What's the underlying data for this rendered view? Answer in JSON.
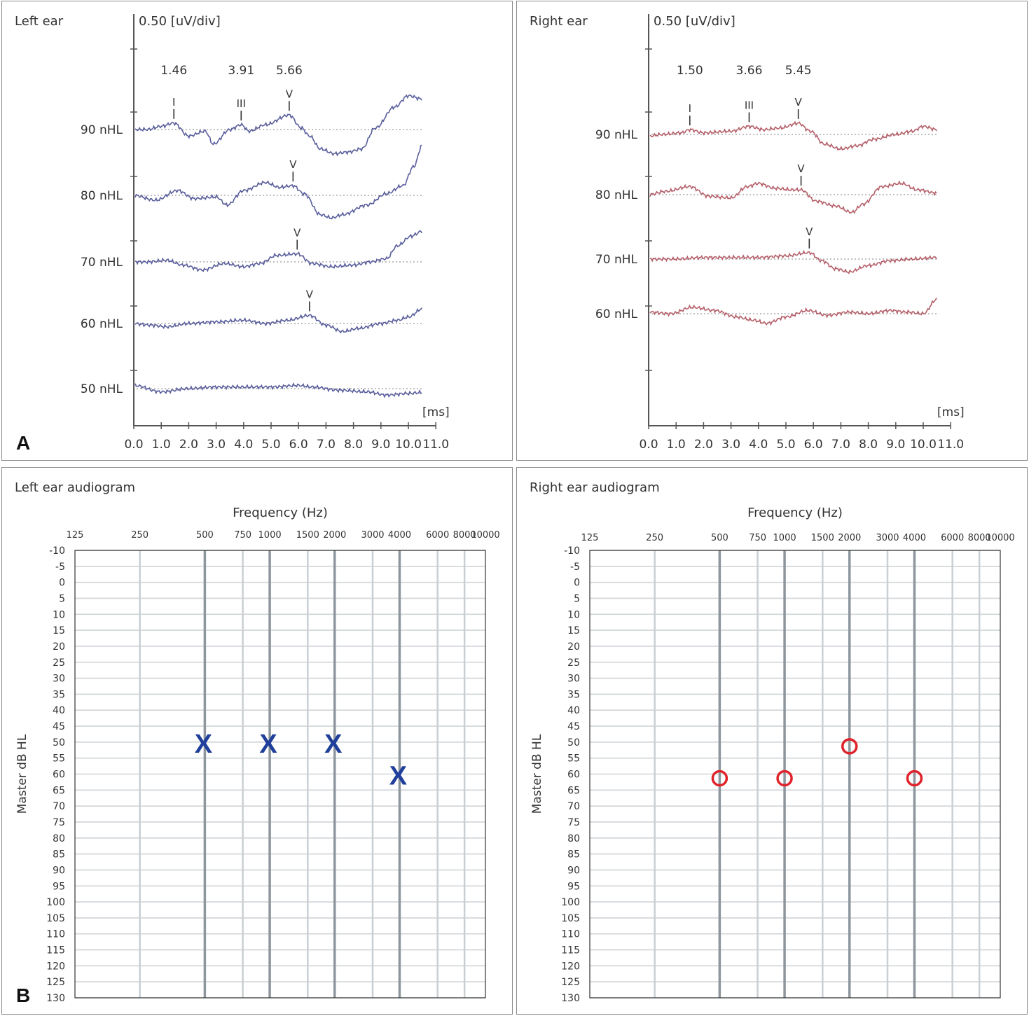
{
  "figure": {
    "panel_a_letter": "A",
    "panel_b_letter": "B"
  },
  "colors": {
    "left_trace": "#5a5f9c",
    "right_trace": "#b5606a",
    "left_symbol": "#1f3f9a",
    "right_symbol": "#e0222a"
  },
  "chart_data": [
    {
      "id": "abr-left",
      "type": "line",
      "title": "Left ear",
      "scale_label": "0.50 [uV/div]",
      "xlabel": "[ms]",
      "xlim": [
        0,
        11
      ],
      "xticks": [
        "0.0",
        "1.0",
        "2.0",
        "3.0",
        "4.0",
        "5.0",
        "6.0",
        "7.0",
        "8.0",
        "9.0",
        "10.0",
        "11.0"
      ],
      "latency_labels": [
        {
          "x": 1.46,
          "text": "1.46"
        },
        {
          "x": 3.91,
          "text": "3.91"
        },
        {
          "x": 5.66,
          "text": "5.66"
        }
      ],
      "series": [
        {
          "name": "90 nHL",
          "peaks": [
            {
              "label": "I",
              "x": 1.46
            },
            {
              "label": "III",
              "x": 3.91
            },
            {
              "label": "V",
              "x": 5.66
            }
          ],
          "points": [
            [
              0,
              0.0
            ],
            [
              0.5,
              0.0
            ],
            [
              1.0,
              0.1
            ],
            [
              1.46,
              0.2
            ],
            [
              2.0,
              -0.2
            ],
            [
              2.6,
              -0.05
            ],
            [
              2.9,
              -0.45
            ],
            [
              3.5,
              0.0
            ],
            [
              3.91,
              0.15
            ],
            [
              4.2,
              -0.05
            ],
            [
              4.8,
              0.15
            ],
            [
              5.66,
              0.45
            ],
            [
              6.1,
              0.05
            ],
            [
              6.4,
              -0.2
            ],
            [
              6.8,
              -0.6
            ],
            [
              7.3,
              -0.75
            ],
            [
              7.8,
              -0.7
            ],
            [
              8.3,
              -0.6
            ],
            [
              8.8,
              0.05
            ],
            [
              9.5,
              0.7
            ],
            [
              10.0,
              1.05
            ],
            [
              10.5,
              0.95
            ]
          ]
        },
        {
          "name": "80 nHL",
          "peaks": [
            {
              "label": "V",
              "x": 5.8
            }
          ],
          "points": [
            [
              0,
              0.0
            ],
            [
              0.8,
              -0.15
            ],
            [
              1.6,
              0.15
            ],
            [
              2.2,
              -0.1
            ],
            [
              3.0,
              -0.05
            ],
            [
              3.4,
              -0.3
            ],
            [
              4.0,
              0.15
            ],
            [
              4.8,
              0.4
            ],
            [
              5.3,
              0.25
            ],
            [
              5.8,
              0.3
            ],
            [
              6.2,
              0.05
            ],
            [
              6.8,
              -0.6
            ],
            [
              7.2,
              -0.7
            ],
            [
              7.6,
              -0.6
            ],
            [
              8.5,
              -0.3
            ],
            [
              9.2,
              0.05
            ],
            [
              9.8,
              0.3
            ],
            [
              10.2,
              0.9
            ],
            [
              10.5,
              1.55
            ]
          ]
        },
        {
          "name": "70 nHL",
          "peaks": [
            {
              "label": "V",
              "x": 5.95
            }
          ],
          "points": [
            [
              0,
              0.0
            ],
            [
              0.5,
              0.0
            ],
            [
              1.2,
              0.05
            ],
            [
              1.8,
              -0.1
            ],
            [
              2.5,
              -0.25
            ],
            [
              3.3,
              -0.05
            ],
            [
              4.0,
              -0.15
            ],
            [
              4.6,
              -0.05
            ],
            [
              5.2,
              0.2
            ],
            [
              5.95,
              0.25
            ],
            [
              6.5,
              -0.05
            ],
            [
              7.2,
              -0.15
            ],
            [
              8.0,
              -0.1
            ],
            [
              8.6,
              0.0
            ],
            [
              9.2,
              0.1
            ],
            [
              9.6,
              0.5
            ],
            [
              10.1,
              0.8
            ],
            [
              10.5,
              0.95
            ]
          ]
        },
        {
          "name": "60 nHL",
          "peaks": [
            {
              "label": "V",
              "x": 6.4
            }
          ],
          "points": [
            [
              0,
              0.0
            ],
            [
              0.6,
              -0.05
            ],
            [
              1.2,
              -0.1
            ],
            [
              2.0,
              0.0
            ],
            [
              3.0,
              0.05
            ],
            [
              4.0,
              0.1
            ],
            [
              4.8,
              0.0
            ],
            [
              5.6,
              0.1
            ],
            [
              6.4,
              0.25
            ],
            [
              7.0,
              -0.05
            ],
            [
              7.6,
              -0.25
            ],
            [
              8.2,
              -0.15
            ],
            [
              9.0,
              0.0
            ],
            [
              9.6,
              0.1
            ],
            [
              10.0,
              0.2
            ],
            [
              10.5,
              0.45
            ]
          ]
        },
        {
          "name": "50 nHL",
          "peaks": [],
          "points": [
            [
              0,
              0.1
            ],
            [
              1.0,
              -0.1
            ],
            [
              2.0,
              0.0
            ],
            [
              3.0,
              0.05
            ],
            [
              4.0,
              0.05
            ],
            [
              5.0,
              0.05
            ],
            [
              6.0,
              0.1
            ],
            [
              6.5,
              0.05
            ],
            [
              7.5,
              -0.05
            ],
            [
              8.5,
              -0.1
            ],
            [
              9.2,
              -0.2
            ],
            [
              10.0,
              -0.15
            ],
            [
              10.5,
              -0.12
            ]
          ]
        }
      ]
    },
    {
      "id": "abr-right",
      "type": "line",
      "title": "Right ear",
      "scale_label": "0.50 [uV/div]",
      "xlabel": "[ms]",
      "xlim": [
        0,
        11
      ],
      "xticks": [
        "0.0",
        "1.0",
        "2.0",
        "3.0",
        "4.0",
        "5.0",
        "6.0",
        "7.0",
        "8.0",
        "9.0",
        "10.0",
        "11.0"
      ],
      "latency_labels": [
        {
          "x": 1.5,
          "text": "1.50"
        },
        {
          "x": 3.66,
          "text": "3.66"
        },
        {
          "x": 5.45,
          "text": "5.45"
        }
      ],
      "series": [
        {
          "name": "90 nHL",
          "peaks": [
            {
              "label": "I",
              "x": 1.5
            },
            {
              "label": "III",
              "x": 3.66
            },
            {
              "label": "V",
              "x": 5.45
            }
          ],
          "points": [
            [
              0,
              -0.05
            ],
            [
              0.5,
              0.0
            ],
            [
              1.2,
              0.05
            ],
            [
              1.5,
              0.15
            ],
            [
              2.0,
              0.05
            ],
            [
              3.0,
              0.1
            ],
            [
              3.66,
              0.25
            ],
            [
              4.2,
              0.15
            ],
            [
              4.8,
              0.2
            ],
            [
              5.45,
              0.35
            ],
            [
              5.9,
              0.1
            ],
            [
              6.4,
              -0.3
            ],
            [
              7.0,
              -0.45
            ],
            [
              7.6,
              -0.35
            ],
            [
              8.2,
              -0.15
            ],
            [
              9.0,
              0.0
            ],
            [
              9.6,
              0.1
            ],
            [
              10.0,
              0.25
            ],
            [
              10.5,
              0.15
            ]
          ]
        },
        {
          "name": "80 nHL",
          "peaks": [
            {
              "label": "V",
              "x": 5.55
            }
          ],
          "points": [
            [
              0,
              0.0
            ],
            [
              0.6,
              0.1
            ],
            [
              1.5,
              0.25
            ],
            [
              2.2,
              -0.05
            ],
            [
              3.0,
              -0.1
            ],
            [
              3.6,
              0.25
            ],
            [
              4.0,
              0.35
            ],
            [
              4.6,
              0.2
            ],
            [
              5.2,
              0.15
            ],
            [
              5.55,
              0.15
            ],
            [
              6.1,
              -0.2
            ],
            [
              6.8,
              -0.35
            ],
            [
              7.4,
              -0.55
            ],
            [
              7.8,
              -0.3
            ],
            [
              8.5,
              0.25
            ],
            [
              9.2,
              0.35
            ],
            [
              9.8,
              0.15
            ],
            [
              10.5,
              0.05
            ]
          ]
        },
        {
          "name": "70 nHL",
          "peaks": [
            {
              "label": "V",
              "x": 5.85
            }
          ],
          "points": [
            [
              0,
              0.0
            ],
            [
              1.0,
              0.0
            ],
            [
              2.0,
              0.05
            ],
            [
              3.0,
              0.05
            ],
            [
              4.0,
              0.05
            ],
            [
              5.0,
              0.1
            ],
            [
              5.85,
              0.2
            ],
            [
              6.3,
              -0.05
            ],
            [
              6.8,
              -0.3
            ],
            [
              7.3,
              -0.4
            ],
            [
              8.0,
              -0.2
            ],
            [
              8.8,
              -0.05
            ],
            [
              9.6,
              0.0
            ],
            [
              10.5,
              0.05
            ]
          ]
        },
        {
          "name": "60 nHL",
          "peaks": [],
          "points": [
            [
              0,
              0.05
            ],
            [
              0.8,
              0.0
            ],
            [
              1.6,
              0.2
            ],
            [
              2.4,
              0.1
            ],
            [
              3.2,
              -0.1
            ],
            [
              3.8,
              -0.2
            ],
            [
              4.3,
              -0.3
            ],
            [
              5.0,
              -0.1
            ],
            [
              5.8,
              0.1
            ],
            [
              6.5,
              -0.05
            ],
            [
              7.3,
              0.05
            ],
            [
              8.0,
              0.0
            ],
            [
              8.8,
              0.1
            ],
            [
              9.4,
              0.05
            ],
            [
              10.0,
              0.0
            ],
            [
              10.5,
              0.45
            ]
          ]
        }
      ]
    },
    {
      "id": "aud-left",
      "type": "scatter",
      "title": "Left ear audiogram",
      "xlabel": "Frequency (Hz)",
      "ylabel": "Master dB HL",
      "xticks": [
        "125",
        "250",
        "500",
        "750",
        "1000",
        "1500",
        "2000",
        "3000",
        "4000",
        "6000",
        "8000",
        "10000"
      ],
      "ylim": [
        -10,
        130
      ],
      "yticks": [
        "-10",
        "-5",
        "0",
        "5",
        "10",
        "15",
        "20",
        "25",
        "30",
        "35",
        "40",
        "45",
        "50",
        "55",
        "60",
        "65",
        "70",
        "75",
        "80",
        "85",
        "90",
        "95",
        "100",
        "105",
        "110",
        "115",
        "120",
        "125",
        "130"
      ],
      "symbol": "X",
      "points": [
        {
          "freq": 500,
          "db": 50
        },
        {
          "freq": 1000,
          "db": 50
        },
        {
          "freq": 2000,
          "db": 50
        },
        {
          "freq": 4000,
          "db": 60
        }
      ]
    },
    {
      "id": "aud-right",
      "type": "scatter",
      "title": "Right ear audiogram",
      "xlabel": "Frequency (Hz)",
      "ylabel": "Master dB HL",
      "xticks": [
        "125",
        "250",
        "500",
        "750",
        "1000",
        "1500",
        "2000",
        "3000",
        "4000",
        "6000",
        "8000",
        "10000"
      ],
      "ylim": [
        -10,
        130
      ],
      "yticks": [
        "-10",
        "-5",
        "0",
        "5",
        "10",
        "15",
        "20",
        "25",
        "30",
        "35",
        "40",
        "45",
        "50",
        "55",
        "60",
        "65",
        "70",
        "75",
        "80",
        "85",
        "90",
        "95",
        "100",
        "105",
        "110",
        "115",
        "120",
        "125",
        "130"
      ],
      "symbol": "O",
      "points": [
        {
          "freq": 500,
          "db": 60
        },
        {
          "freq": 1000,
          "db": 60
        },
        {
          "freq": 2000,
          "db": 50
        },
        {
          "freq": 4000,
          "db": 60
        }
      ]
    }
  ]
}
